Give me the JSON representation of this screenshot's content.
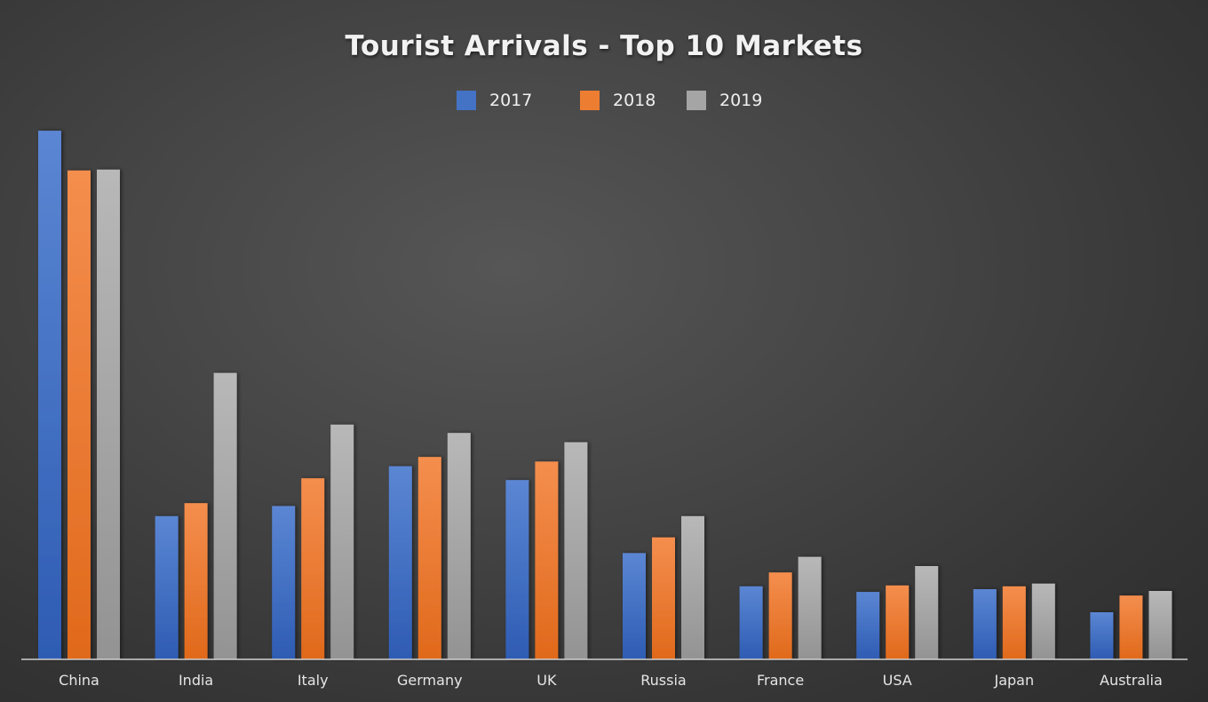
{
  "chart_data": {
    "type": "bar",
    "title": "Tourist Arrivals - Top 10 Markets",
    "categories": [
      "China",
      "India",
      "Italy",
      "Germany",
      "UK",
      "Russia",
      "France",
      "USA",
      "Japan",
      "Australia"
    ],
    "series": [
      {
        "name": "2017",
        "color": "#4472c4",
        "values": [
          572,
          155,
          166,
          209,
          194,
          115,
          79,
          73,
          76,
          51
        ]
      },
      {
        "name": "2018",
        "color": "#ed7d31",
        "values": [
          529,
          169,
          196,
          219,
          214,
          132,
          94,
          80,
          79,
          69
        ]
      },
      {
        "name": "2019",
        "color": "#a5a5a5",
        "values": [
          530,
          310,
          254,
          245,
          235,
          155,
          111,
          101,
          82,
          74
        ]
      }
    ],
    "ylim": [
      0,
      600
    ],
    "xlabel": "",
    "ylabel": "",
    "grid": false,
    "legend": "top-center"
  }
}
